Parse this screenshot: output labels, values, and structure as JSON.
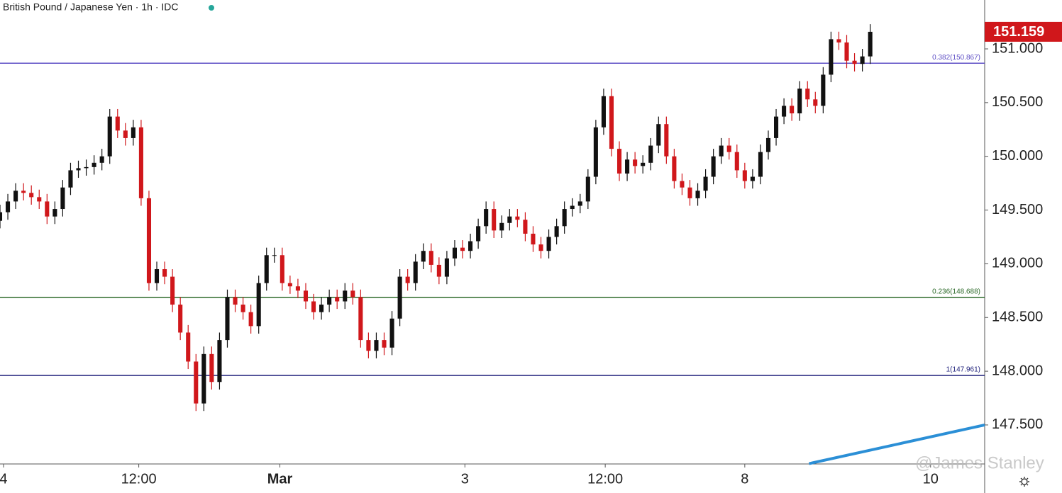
{
  "chart_data": {
    "type": "candlestick",
    "title": "British Pound / Japanese Yen · 1h · IDC",
    "watermark": "@James Stanley",
    "up_color": "#111111",
    "down_color": "#d0171b",
    "open": [
      149.4,
      149.48,
      149.58,
      149.68,
      149.66,
      149.62,
      149.58,
      149.44,
      149.51,
      149.71,
      149.87,
      149.89,
      149.9,
      149.94,
      150.0,
      150.37,
      150.24,
      150.17,
      150.27,
      149.61,
      148.82,
      148.95,
      148.88,
      148.62,
      148.36,
      148.09,
      147.7,
      148.16,
      147.9,
      148.29,
      148.69,
      148.62,
      148.55,
      148.42,
      148.82,
      149.08,
      149.08,
      148.82,
      148.79,
      148.75,
      148.65,
      148.55,
      148.62,
      148.69,
      148.65,
      148.75,
      148.69,
      148.29,
      148.19,
      148.29,
      148.22,
      148.49,
      148.88,
      148.82,
      149.02,
      149.12,
      148.99,
      148.88,
      149.05,
      149.15,
      149.12,
      149.21,
      149.35,
      149.51,
      149.31,
      149.38,
      149.44,
      149.41,
      149.28,
      149.18,
      149.12,
      149.25,
      149.35,
      149.51,
      149.54,
      149.58,
      149.81,
      150.27,
      150.56,
      150.07,
      149.84,
      149.97,
      149.91,
      149.94,
      150.1,
      150.3,
      150.0,
      149.77,
      149.71,
      149.61,
      149.68,
      149.81,
      150.0,
      150.1,
      150.04,
      149.87,
      149.77,
      149.81,
      150.04,
      150.17,
      150.37,
      150.47,
      150.4,
      150.63,
      150.53,
      150.47,
      150.76,
      151.09,
      151.06,
      150.89,
      150.86,
      150.93
    ],
    "high": [
      149.55,
      149.65,
      149.75,
      149.75,
      149.73,
      149.69,
      149.65,
      149.58,
      149.78,
      149.94,
      149.96,
      149.97,
      150.01,
      150.07,
      150.44,
      150.44,
      150.31,
      150.34,
      150.34,
      149.68,
      149.02,
      149.02,
      148.95,
      148.69,
      148.43,
      148.16,
      148.23,
      148.23,
      148.36,
      148.76,
      148.76,
      148.69,
      148.62,
      148.89,
      149.15,
      149.15,
      149.15,
      148.89,
      148.86,
      148.82,
      148.72,
      148.69,
      148.76,
      148.76,
      148.82,
      148.82,
      148.76,
      148.36,
      148.36,
      148.36,
      148.56,
      148.95,
      148.95,
      149.09,
      149.19,
      149.19,
      149.06,
      149.12,
      149.22,
      149.22,
      149.28,
      149.42,
      149.58,
      149.58,
      149.45,
      149.51,
      149.51,
      149.48,
      149.35,
      149.25,
      149.32,
      149.42,
      149.58,
      149.61,
      149.65,
      149.88,
      150.34,
      150.63,
      150.63,
      150.14,
      150.04,
      150.04,
      150.01,
      150.17,
      150.37,
      150.37,
      150.07,
      149.84,
      149.78,
      149.75,
      149.88,
      150.07,
      150.17,
      150.17,
      150.11,
      149.94,
      149.88,
      150.11,
      150.24,
      150.44,
      150.54,
      150.54,
      150.7,
      150.7,
      150.6,
      150.83,
      151.16,
      151.16,
      151.13,
      150.96,
      151.0,
      151.23
    ],
    "low": [
      149.33,
      149.41,
      149.51,
      149.59,
      149.55,
      149.51,
      149.37,
      149.37,
      149.44,
      149.64,
      149.8,
      149.82,
      149.83,
      149.87,
      149.93,
      150.17,
      150.1,
      150.1,
      149.54,
      148.75,
      148.75,
      148.81,
      148.55,
      148.29,
      148.02,
      147.63,
      147.63,
      147.83,
      147.83,
      148.22,
      148.55,
      148.48,
      148.35,
      148.35,
      148.75,
      149.01,
      148.75,
      148.72,
      148.68,
      148.58,
      148.48,
      148.48,
      148.55,
      148.58,
      148.58,
      148.62,
      148.22,
      148.12,
      148.12,
      148.15,
      148.15,
      148.42,
      148.75,
      148.75,
      148.95,
      148.92,
      148.81,
      148.81,
      148.98,
      149.05,
      149.05,
      149.14,
      149.28,
      149.24,
      149.24,
      149.31,
      149.34,
      149.21,
      149.11,
      149.05,
      149.05,
      149.18,
      149.28,
      149.44,
      149.47,
      149.51,
      149.74,
      150.2,
      150.0,
      149.77,
      149.77,
      149.84,
      149.84,
      149.87,
      150.03,
      149.93,
      149.7,
      149.64,
      149.54,
      149.54,
      149.61,
      149.74,
      149.93,
      149.97,
      149.8,
      149.7,
      149.7,
      149.74,
      149.97,
      150.1,
      150.3,
      150.33,
      150.33,
      150.46,
      150.4,
      150.4,
      150.69,
      150.99,
      150.82,
      150.79,
      150.79,
      150.86
    ],
    "close": [
      149.48,
      149.58,
      149.68,
      149.66,
      149.62,
      149.58,
      149.44,
      149.51,
      149.71,
      149.87,
      149.89,
      149.9,
      149.94,
      150.0,
      150.37,
      150.24,
      150.17,
      150.27,
      149.61,
      148.82,
      148.95,
      148.88,
      148.62,
      148.36,
      148.09,
      147.7,
      148.16,
      147.9,
      148.29,
      148.69,
      148.62,
      148.55,
      148.42,
      148.82,
      149.08,
      149.08,
      148.82,
      148.79,
      148.75,
      148.65,
      148.55,
      148.62,
      148.69,
      148.65,
      148.75,
      148.69,
      148.29,
      148.19,
      148.29,
      148.22,
      148.49,
      148.88,
      148.82,
      149.02,
      149.12,
      148.99,
      148.88,
      149.05,
      149.15,
      149.12,
      149.21,
      149.35,
      149.51,
      149.31,
      149.38,
      149.44,
      149.41,
      149.28,
      149.18,
      149.12,
      149.25,
      149.35,
      149.51,
      149.54,
      149.58,
      149.81,
      150.27,
      150.56,
      150.07,
      149.84,
      149.97,
      149.91,
      149.94,
      150.1,
      150.3,
      150.0,
      149.77,
      149.71,
      149.61,
      149.68,
      149.81,
      150.0,
      150.1,
      150.04,
      149.87,
      149.77,
      149.81,
      150.04,
      150.17,
      150.37,
      150.47,
      150.4,
      150.63,
      150.53,
      150.47,
      150.76,
      151.09,
      151.06,
      150.89,
      150.86,
      150.93,
      151.159
    ],
    "last_price": {
      "value": 151.159,
      "label": "151.159"
    },
    "levels": [
      {
        "label": "0.382(150.867)",
        "value": 150.867,
        "color": "#5e4fc5"
      },
      {
        "label": "0.236(148.688)",
        "value": 148.688,
        "color": "#2e6b2b"
      },
      {
        "label": "1(147.961)",
        "value": 147.961,
        "color": "#1d1f7a"
      }
    ],
    "trendline": {
      "color": "#2b8fd6",
      "x": [
        103.2,
        125.6
      ],
      "y": [
        147.14,
        147.5
      ]
    },
    "xlim": [
      0,
      125.6
    ],
    "ylim": [
      147.137,
      151.455
    ],
    "xticks": [
      {
        "value": 0.45,
        "label": "4"
      },
      {
        "value": 17.7,
        "label": "12:00"
      },
      {
        "value": 35.7,
        "label": "Mar"
      },
      {
        "value": 59.3,
        "label": "3"
      },
      {
        "value": 77.2,
        "label": "12:00"
      },
      {
        "value": 95.0,
        "label": "8"
      },
      {
        "value": 118.7,
        "label": "10"
      }
    ],
    "yticks": [
      {
        "value": 147.5,
        "label": "147.500"
      },
      {
        "value": 148,
        "label": "148.000"
      },
      {
        "value": 148.5,
        "label": "148.500"
      },
      {
        "value": 149,
        "label": "149.000"
      },
      {
        "value": 149.5,
        "label": "149.500"
      },
      {
        "value": 150,
        "label": "150.000"
      },
      {
        "value": 150.5,
        "label": "150.500"
      },
      {
        "value": 151,
        "label": "151.000"
      }
    ]
  }
}
